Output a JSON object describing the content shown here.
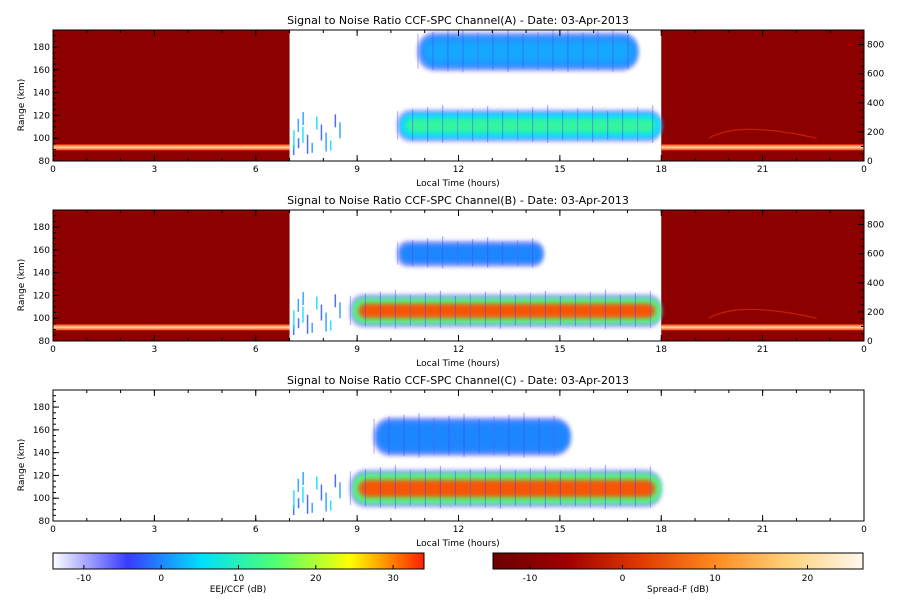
{
  "chart_data": [
    {
      "type": "heatmap",
      "title": "Signal to Noise Ratio CCF-SPC Channel(A) - Date: 03-Apr-2013",
      "xlabel": "Local Time (hours)",
      "ylabel": "Range (km)",
      "xlim": [
        0,
        24
      ],
      "ylim": [
        80,
        195
      ],
      "xticks": [
        "0",
        "3",
        "6",
        "9",
        "12",
        "15",
        "18",
        "21",
        "0"
      ],
      "yticks": [
        "80",
        "100",
        "120",
        "140",
        "160",
        "180"
      ],
      "right_axis": {
        "lim": [
          0,
          900
        ],
        "ticks": [
          "0",
          "200",
          "400",
          "600",
          "800"
        ]
      },
      "nighttime_spread_f": {
        "colormap": "spread-f",
        "time_ranges": [
          [
            0,
            7
          ],
          [
            18,
            24
          ]
        ],
        "echo_range_km": 92,
        "faint_trace_peak_km": 112
      },
      "daytime_eej_ccf": {
        "colormap": "eej-ccf",
        "time_range": [
          7,
          18
        ],
        "echo_layers": [
          {
            "time_start": 10.2,
            "time_end": 18,
            "range_low_km": 100,
            "range_high_km": 122,
            "peak_snr_db": 12
          },
          {
            "time_start": 10.8,
            "time_end": 17.3,
            "range_low_km": 162,
            "range_high_km": 190,
            "peak_snr_db": 2
          }
        ]
      }
    },
    {
      "type": "heatmap",
      "title": "Signal to Noise Ratio CCF-SPC Channel(B) - Date: 03-Apr-2013",
      "xlabel": "Local Time (hours)",
      "ylabel": "Range (km)",
      "xlim": [
        0,
        24
      ],
      "ylim": [
        80,
        195
      ],
      "xticks": [
        "0",
        "3",
        "6",
        "9",
        "12",
        "15",
        "18",
        "21",
        "0"
      ],
      "yticks": [
        "80",
        "100",
        "120",
        "140",
        "160",
        "180"
      ],
      "right_axis": {
        "lim": [
          0,
          900
        ],
        "ticks": [
          "0",
          "200",
          "400",
          "600",
          "800"
        ]
      },
      "nighttime_spread_f": {
        "colormap": "spread-f",
        "time_ranges": [
          [
            0,
            7
          ],
          [
            18,
            24
          ]
        ],
        "echo_range_km": 92,
        "faint_trace_peak_km": 112
      },
      "daytime_eej_ccf": {
        "colormap": "eej-ccf",
        "time_range": [
          7,
          18
        ],
        "echo_layers": [
          {
            "time_start": 8.8,
            "time_end": 18,
            "range_low_km": 95,
            "range_high_km": 118,
            "peak_snr_db": 32
          },
          {
            "time_start": 10.2,
            "time_end": 14.5,
            "range_low_km": 148,
            "range_high_km": 165,
            "peak_snr_db": 0
          }
        ]
      }
    },
    {
      "type": "heatmap",
      "title": "Signal to Noise Ratio CCF-SPC Channel(C) - Date: 03-Apr-2013",
      "xlabel": "Local Time (hours)",
      "ylabel": "Range (km)",
      "xlim": [
        0,
        24
      ],
      "ylim": [
        80,
        195
      ],
      "xticks": [
        "0",
        "3",
        "6",
        "9",
        "12",
        "15",
        "18",
        "21",
        "0"
      ],
      "yticks": [
        "80",
        "100",
        "120",
        "140",
        "160",
        "180"
      ],
      "daytime_eej_ccf": {
        "colormap": "eej-ccf",
        "time_range": [
          7,
          18
        ],
        "echo_layers": [
          {
            "time_start": 8.8,
            "time_end": 18,
            "range_low_km": 95,
            "range_high_km": 122,
            "peak_snr_db": 32
          },
          {
            "time_start": 9.5,
            "time_end": 15.3,
            "range_low_km": 140,
            "range_high_km": 168,
            "peak_snr_db": 0
          }
        ]
      }
    }
  ],
  "colorbars": [
    {
      "label": "EEJ/CCF (dB)",
      "range": [
        -14,
        34
      ],
      "ticks": [
        "-10",
        "0",
        "10",
        "20",
        "30"
      ],
      "colors": [
        "#ffffff",
        "#3a3aff",
        "#00e0ff",
        "#50ff70",
        "#ffff00",
        "#ff2000"
      ]
    },
    {
      "label": "Spread-F (dB)",
      "range": [
        -14,
        26
      ],
      "ticks": [
        "-10",
        "0",
        "10",
        "20"
      ],
      "colors": [
        "#6d0000",
        "#a00000",
        "#e03a00",
        "#ff8a20",
        "#ffd27a",
        "#fff8ee"
      ]
    }
  ]
}
